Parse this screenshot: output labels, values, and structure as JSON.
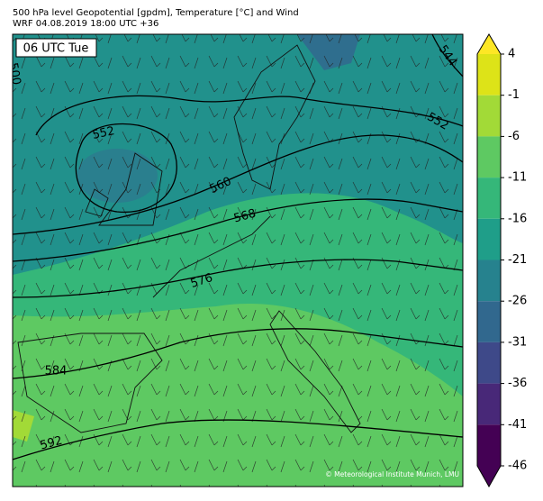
{
  "header": {
    "title": "500 hPa level Geopotential [gpdm], Temperature [°C] and Wind",
    "subtitle": "WRF 04.08.2019 18:00 UTC +36"
  },
  "time_label": "06 UTC Tue",
  "credit": "© Meteorological Institute Munich, LMU",
  "contours": {
    "labels": [
      "552",
      "560",
      "568",
      "576",
      "584",
      "592",
      "544",
      "552",
      "500"
    ]
  },
  "colorbar": {
    "ticks": [
      4,
      -1,
      -6,
      -11,
      -16,
      -21,
      -26,
      -31,
      -36,
      -41,
      -46
    ],
    "colors": [
      "#dde318",
      "#a2da37",
      "#5ec962",
      "#35b779",
      "#1f9e89",
      "#26828e",
      "#31688e",
      "#3e4989",
      "#482878",
      "#440154"
    ],
    "extend_top": "#fde725",
    "extend_bottom": "#440154"
  }
}
